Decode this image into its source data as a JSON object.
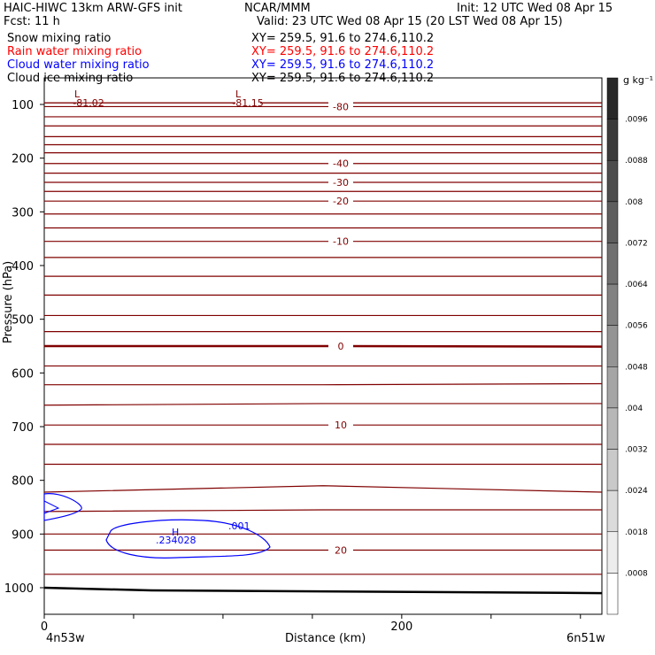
{
  "header": {
    "title_left": "HAIC-HIWC 13km ARW-GFS init",
    "title_center": "NCAR/MMM",
    "init": "Init: 12 UTC Wed 08 Apr 15",
    "fcst": "Fcst:    11 h",
    "valid": "Valid: 23 UTC Wed 08 Apr 15 (20 LST Wed 08 Apr 15)"
  },
  "fields": [
    {
      "label": "Snow mixing ratio",
      "xy": "XY= 259.5, 91.6 to 274.6,110.2",
      "color": "#000000"
    },
    {
      "label": "Rain water mixing ratio",
      "xy": "XY= 259.5, 91.6 to 274.6,110.2",
      "color": "#ff0000"
    },
    {
      "label": "Cloud water mixing ratio",
      "xy": "XY= 259.5, 91.6 to 274.6,110.2",
      "color": "#0000ff"
    },
    {
      "label": "Cloud ice mixing ratio",
      "xy": "XY= 259.5, 91.6 to 274.6,110.2",
      "color": "#000000"
    }
  ],
  "colorbar": {
    "unit": "g kg⁻¹",
    "labels": [
      ".0096",
      ".0088",
      ".008",
      ".0072",
      ".0064",
      ".0056",
      ".0048",
      ".004",
      ".0032",
      ".0024",
      ".0018",
      ".0008"
    ]
  },
  "chart_data": {
    "type": "line",
    "xlabel": "Distance (km)",
    "ylabel": "Pressure (hPa)",
    "xlim": [
      0,
      312
    ],
    "ylim": [
      1050,
      50
    ],
    "y_scale": "reversed",
    "x_ticks": [
      {
        "value": 0,
        "label": "0"
      },
      {
        "value": 200,
        "label": "200"
      }
    ],
    "y_ticks": [
      "100",
      "200",
      "300",
      "400",
      "500",
      "600",
      "700",
      "800",
      "900",
      "1000"
    ],
    "endpoint_left": "4n53w",
    "endpoint_right": "6n51w",
    "temperature_line_color": "#800000",
    "cloud_water_color": "#0000ff",
    "isotherms": [
      {
        "level": "-81.02",
        "p": [
          97,
          97,
          97
        ]
      },
      {
        "level": "-81.15",
        "p": [
          97,
          97,
          97
        ]
      },
      {
        "level": "-80",
        "p": [
          104,
          104,
          104
        ]
      },
      {
        "p": [
          123,
          123,
          123
        ]
      },
      {
        "p": [
          140,
          140,
          140
        ]
      },
      {
        "p": [
          160,
          160,
          160
        ]
      },
      {
        "p": [
          175,
          175,
          175
        ]
      },
      {
        "p": [
          190,
          190,
          190
        ]
      },
      {
        "level": "-40",
        "p": [
          210,
          210,
          210
        ]
      },
      {
        "p": [
          228,
          228,
          228
        ]
      },
      {
        "level": "-30",
        "p": [
          245,
          245,
          245
        ]
      },
      {
        "p": [
          262,
          262,
          262
        ]
      },
      {
        "level": "-20",
        "p": [
          280,
          280,
          280
        ]
      },
      {
        "p": [
          304,
          304,
          304
        ]
      },
      {
        "p": [
          330,
          330,
          330
        ]
      },
      {
        "level": "-10",
        "p": [
          355,
          355,
          355
        ]
      },
      {
        "p": [
          385,
          385,
          385
        ]
      },
      {
        "p": [
          420,
          420,
          420
        ]
      },
      {
        "p": [
          455,
          455,
          455
        ]
      },
      {
        "p": [
          493,
          493,
          493
        ]
      },
      {
        "p": [
          523,
          523,
          523
        ]
      },
      {
        "level": "0",
        "p": [
          550,
          550,
          551
        ],
        "emphasis": true
      },
      {
        "p": [
          587,
          587,
          587
        ]
      },
      {
        "p": [
          622,
          622,
          620
        ]
      },
      {
        "p": [
          660,
          657,
          657
        ]
      },
      {
        "level": "10",
        "p": [
          697,
          697,
          697
        ]
      },
      {
        "p": [
          733,
          733,
          733
        ]
      },
      {
        "p": [
          770,
          770,
          770
        ]
      },
      {
        "p": [
          822,
          810,
          822
        ]
      },
      {
        "p": [
          858,
          855,
          855
        ]
      },
      {
        "p": [
          900,
          900,
          900
        ]
      },
      {
        "level": "20",
        "p": [
          930,
          930,
          930
        ]
      },
      {
        "p": [
          975,
          975,
          975
        ]
      }
    ],
    "isotherm_x": [
      0,
      156,
      312
    ],
    "cloud_water_contours": [
      {
        "label": ".001",
        "center_label": "H",
        "max_label": ".234028"
      }
    ],
    "ground_line": {
      "x": [
        0,
        60,
        312
      ],
      "p": [
        1000,
        1005,
        1010
      ]
    }
  }
}
